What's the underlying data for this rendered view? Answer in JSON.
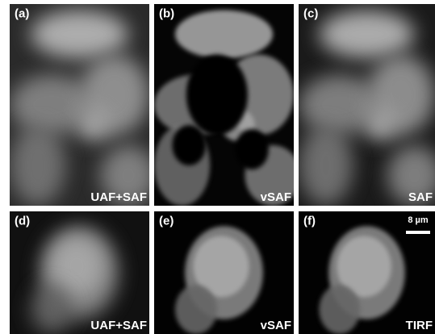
{
  "panels": [
    {
      "label": "(a)",
      "caption": "UAF+SAF"
    },
    {
      "label": "(b)",
      "caption": "vSAF"
    },
    {
      "label": "(c)",
      "caption": "SAF"
    },
    {
      "label": "(d)",
      "caption": "UAF+SAF"
    },
    {
      "label": "(e)",
      "caption": "vSAF"
    },
    {
      "label": "(f)",
      "caption": "TIRF"
    }
  ],
  "scale_bar": "8 µm"
}
